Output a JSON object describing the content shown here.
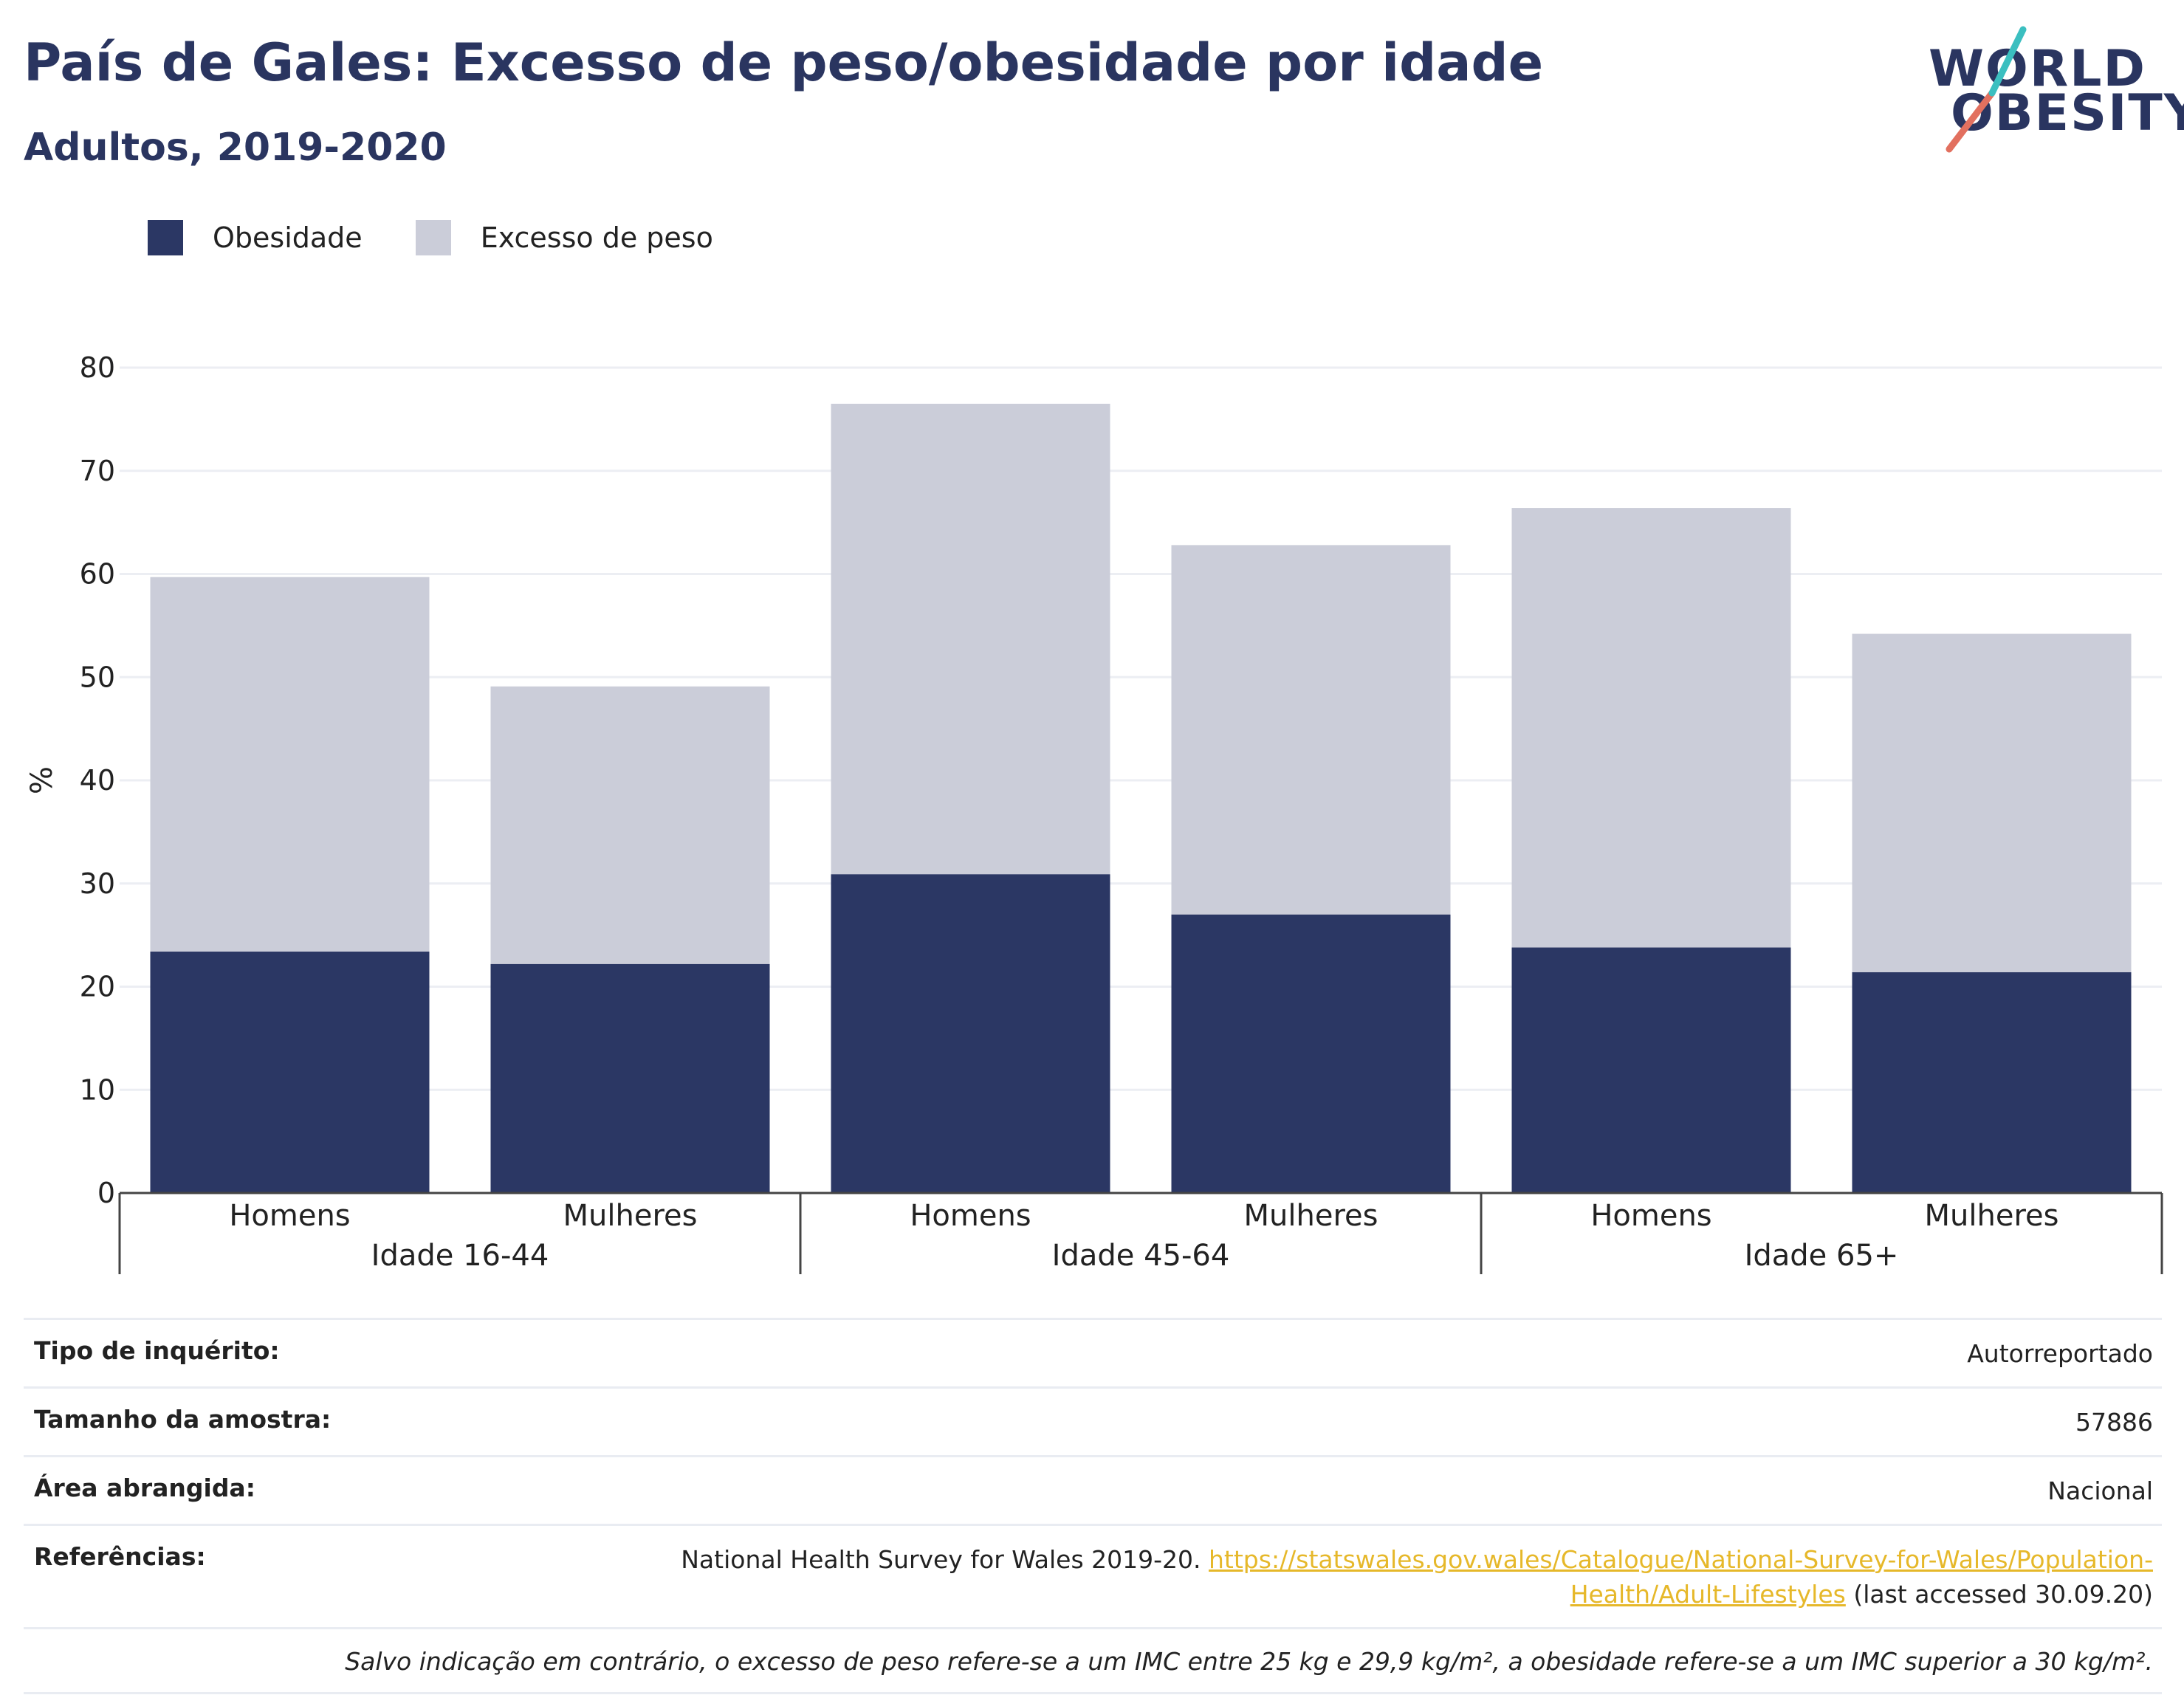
{
  "header": {
    "title": "País de Gales: Excesso de peso/obesidade por idade",
    "subtitle": "Adultos, 2019-2020"
  },
  "logo": {
    "line1": "WORLD",
    "line2": "OBESITY"
  },
  "colors": {
    "obesity": "#2b3764",
    "overweight": "#cbcdd9",
    "text_dark": "#2a3560",
    "link": "#e6b82a"
  },
  "chart_data": {
    "type": "bar",
    "stacked": true,
    "ylabel": "%",
    "ylim": [
      0,
      80
    ],
    "yticks": [
      0,
      10,
      20,
      30,
      40,
      50,
      60,
      70,
      80
    ],
    "grid": true,
    "legend_placement": "top-left",
    "categories": [
      "Homens",
      "Mulheres",
      "Homens",
      "Mulheres",
      "Homens",
      "Mulheres"
    ],
    "groups": [
      {
        "label": "Idade 16-44",
        "categories": [
          0,
          1
        ]
      },
      {
        "label": "Idade 45-64",
        "categories": [
          2,
          3
        ]
      },
      {
        "label": "Idade 65+",
        "categories": [
          4,
          5
        ]
      }
    ],
    "series": [
      {
        "name": "Obesidade",
        "values": [
          23.4,
          22.2,
          30.9,
          27.0,
          23.8,
          21.4
        ]
      },
      {
        "name": "Excesso de peso",
        "values": [
          36.3,
          26.9,
          45.6,
          35.8,
          42.6,
          32.8
        ]
      }
    ]
  },
  "info": {
    "survey_type_label": "Tipo de inquérito:",
    "survey_type_value": "Autorreportado",
    "sample_size_label": "Tamanho da amostra:",
    "sample_size_value": "57886",
    "area_label": "Área abrangida:",
    "area_value": "Nacional",
    "references_label": "Referências:",
    "references_text": "National Health Survey for Wales 2019-20.",
    "references_link": "https://statswales.gov.wales/Catalogue/National-Survey-for-Wales/Population-Health/Adult-Lifestyles",
    "references_suffix": "(last accessed 30.09.20)",
    "note": "Salvo indicação em contrário, o excesso de peso refere-se a um IMC entre 25 kg e 29,9 kg/m², a obesidade refere-se a um IMC superior a 30 kg/m²."
  }
}
